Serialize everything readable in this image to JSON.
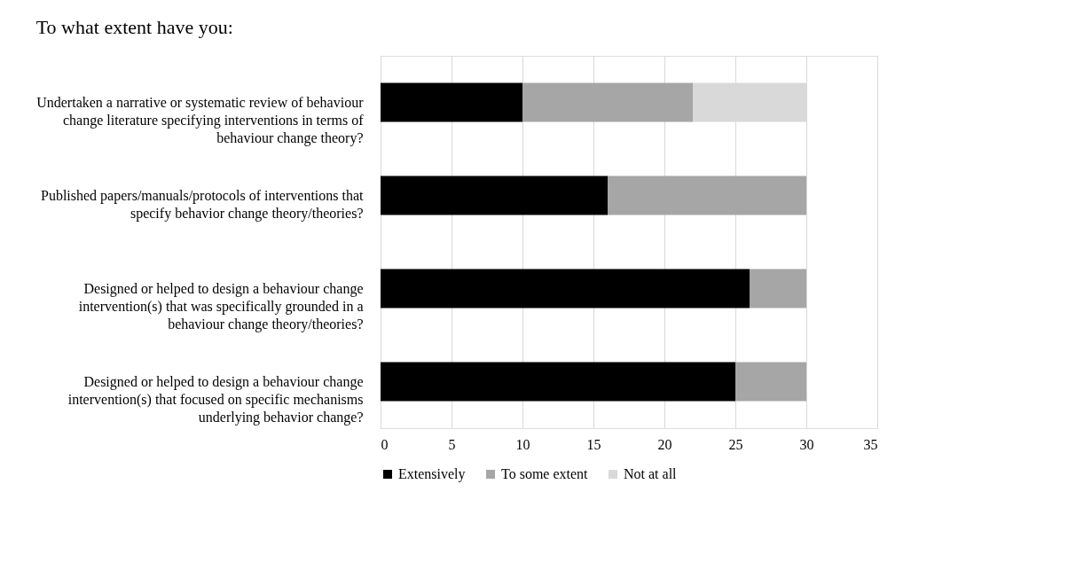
{
  "chart_data": {
    "type": "bar",
    "orientation": "horizontal",
    "stacked": true,
    "title": "To what extent have you:",
    "categories": [
      "Undertaken a narrative or systematic review of behaviour change literature specifying interventions in terms of behaviour change theory?",
      "Published papers/manuals/protocols of interventions that specify behavior change theory/theories?",
      "Designed or helped to design a behaviour change intervention(s) that was specifically grounded in a behaviour change theory/theories?",
      "Designed or helped to design a behaviour change intervention(s) that focused on specific mechanisms underlying behavior change?"
    ],
    "series": [
      {
        "name": "Extensively",
        "color": "#000000",
        "values": [
          10,
          16,
          26,
          25
        ]
      },
      {
        "name": "To some extent",
        "color": "#a6a6a6",
        "values": [
          12,
          14,
          4,
          5
        ]
      },
      {
        "name": "Not at all",
        "color": "#d9d9d9",
        "values": [
          8,
          0,
          0,
          0
        ]
      }
    ],
    "xlim": [
      0,
      35
    ],
    "xticks": [
      0,
      5,
      10,
      15,
      20,
      25,
      30,
      35
    ],
    "grid": "x",
    "legend": "bottom"
  }
}
